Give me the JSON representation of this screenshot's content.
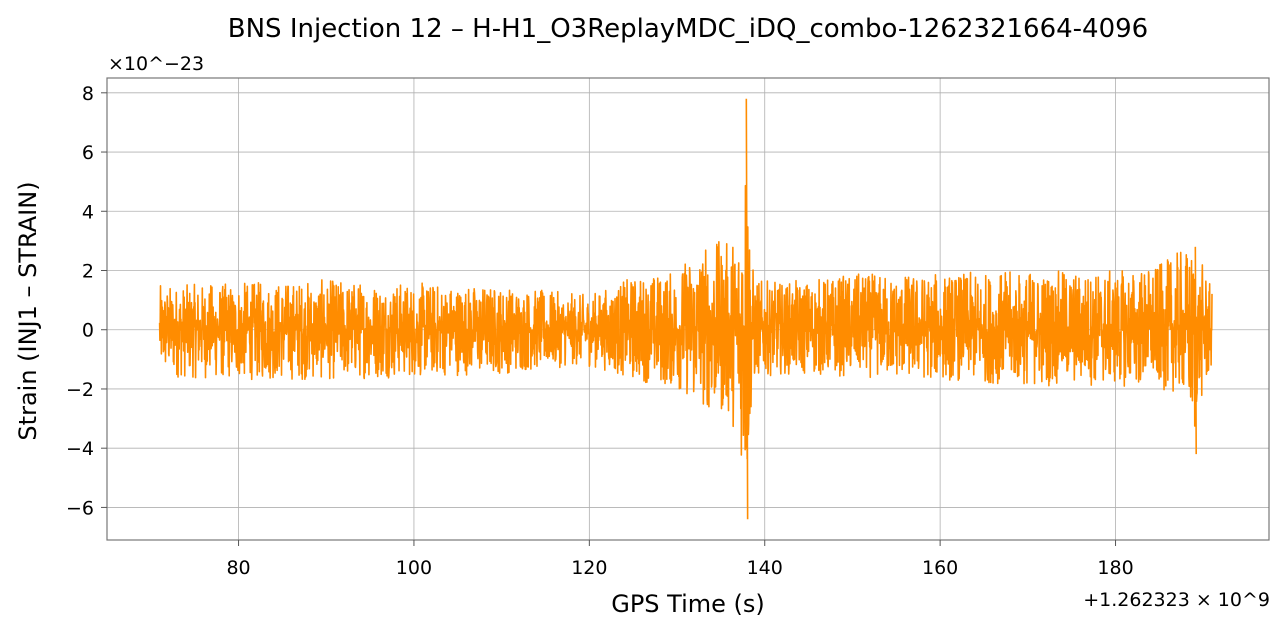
{
  "chart_data": {
    "type": "line",
    "title": "BNS Injection 12 – H-H1_O3ReplayMDC_iDQ_combo-1262321664-4096",
    "xlabel": "GPS Time (s)",
    "ylabel": "Strain (INJ1 – STRAIN)",
    "x_offset_label": "+1.262323 × 10^9",
    "y_scale_label": "×10^−23",
    "xlim": [
      65,
      197.5
    ],
    "ylim": [
      -7.1,
      8.5
    ],
    "x_ticks": [
      80,
      100,
      120,
      140,
      160,
      180
    ],
    "y_ticks": [
      -6,
      -4,
      -2,
      0,
      2,
      4,
      6,
      8
    ],
    "y_tick_labels": [
      "−6",
      "−4",
      "−2",
      "0",
      "2",
      "4",
      "6",
      "8"
    ],
    "grid": true,
    "legend": "none",
    "series": [
      {
        "color": "#ff8c00",
        "x_range": [
          71,
          191
        ],
        "envelope": {
          "x": [
            71,
            80,
            90,
            100,
            110,
            119,
            121,
            125,
            130,
            132,
            134,
            136,
            137,
            137.6,
            138,
            138.4,
            139,
            142,
            150,
            160,
            170,
            180,
            185,
            188,
            189,
            189.3,
            190,
            191
          ],
          "upper": [
            1.5,
            1.6,
            1.7,
            1.6,
            1.5,
            1.2,
            1.3,
            1.8,
            2.0,
            2.8,
            3.0,
            3.0,
            3.5,
            6.0,
            7.8,
            2.5,
            1.7,
            1.6,
            1.9,
            1.9,
            2.0,
            2.0,
            2.2,
            2.8,
            2.6,
            1.8,
            2.3,
            1.3
          ],
          "lower": [
            -1.6,
            -1.7,
            -1.7,
            -1.6,
            -1.5,
            -1.2,
            -1.3,
            -1.7,
            -2.0,
            -2.5,
            -2.8,
            -3.0,
            -3.7,
            -5.0,
            -6.4,
            -3.0,
            -1.6,
            -1.5,
            -1.6,
            -1.7,
            -1.9,
            -1.9,
            -2.0,
            -2.2,
            -4.2,
            -2.5,
            -2.4,
            -1.3
          ]
        }
      }
    ]
  }
}
